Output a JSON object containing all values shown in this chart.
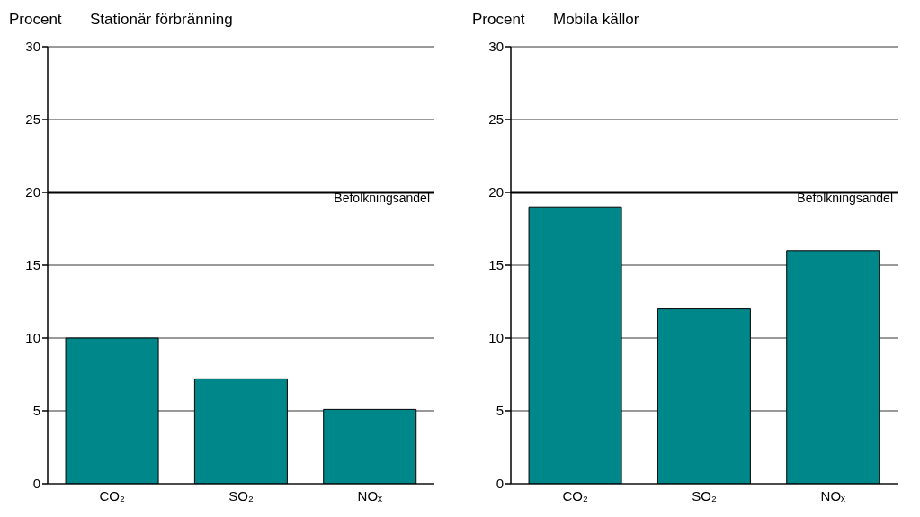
{
  "chart_data": [
    {
      "type": "bar",
      "title": "Stationär förbränning",
      "ylabel": "Procent",
      "categories": [
        "CO₂",
        "SO₂",
        "NOₓ"
      ],
      "values": [
        10,
        7.2,
        5.1
      ],
      "color": "#00878a",
      "ylim": [
        0,
        30
      ],
      "yticks": [
        0,
        5,
        10,
        15,
        20,
        25,
        30
      ],
      "grid": "y",
      "ref_lines": [
        {
          "axis": "y",
          "value": 20,
          "label": "Befolkningsandel",
          "color": "#000000"
        }
      ]
    },
    {
      "type": "bar",
      "title": "Mobila källor",
      "ylabel": "Procent",
      "categories": [
        "CO₂",
        "SO₂",
        "NOₓ"
      ],
      "values": [
        19,
        12,
        16
      ],
      "color": "#00878a",
      "ylim": [
        0,
        30
      ],
      "yticks": [
        0,
        5,
        10,
        15,
        20,
        25,
        30
      ],
      "grid": "y",
      "ref_lines": [
        {
          "axis": "y",
          "value": 20,
          "label": "Befolkningsandel",
          "color": "#000000"
        }
      ]
    }
  ]
}
